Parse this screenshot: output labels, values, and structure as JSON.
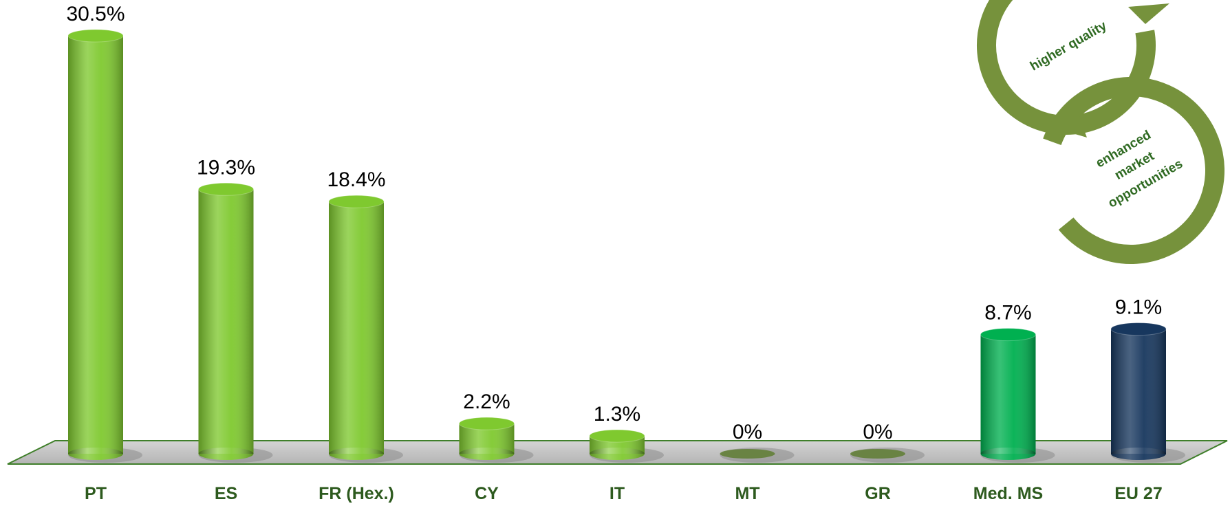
{
  "chart_data": {
    "type": "bar",
    "categories": [
      "PT",
      "ES",
      "FR (Hex.)",
      "CY",
      "IT",
      "MT",
      "GR",
      "Med. MS",
      "EU 27"
    ],
    "values": [
      30.5,
      19.3,
      18.4,
      2.2,
      1.3,
      0,
      0,
      8.7,
      9.1
    ],
    "value_labels": [
      "30.5%",
      "19.3%",
      "18.4%",
      "2.2%",
      "1.3%",
      "0%",
      "0%",
      "8.7%",
      "9.1%"
    ],
    "colors": [
      "#7fc92f",
      "#7fc92f",
      "#7fc92f",
      "#7fc92f",
      "#7fc92f",
      "#7fc92f",
      "#7fc92f",
      "#00b050",
      "#17375e"
    ],
    "annotations": [
      "higher quality",
      "enhanced",
      "market",
      "opportunities"
    ]
  }
}
